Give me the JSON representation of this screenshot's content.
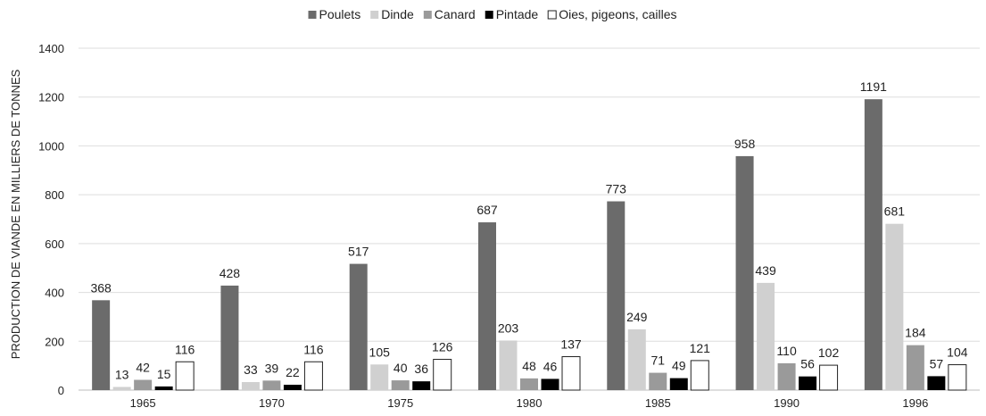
{
  "chart_data": {
    "type": "bar",
    "title": "",
    "xlabel": "",
    "ylabel": "PRODUCTION DE VIANDE EN MILLIERS DE TONNES",
    "ylim": [
      0,
      1400
    ],
    "yticks": [
      "0",
      "200",
      "400",
      "600",
      "800",
      "1000",
      "1200",
      "1400"
    ],
    "grid": true,
    "legend_position": "top",
    "categories": [
      "1965",
      "1970",
      "1975",
      "1980",
      "1985",
      "1990",
      "1996"
    ],
    "series": [
      {
        "name": "Poulets",
        "color": "#6b6b6b",
        "values": [
          368,
          428,
          517,
          687,
          773,
          958,
          1191
        ]
      },
      {
        "name": "Dinde",
        "color": "#d0d0d0",
        "values": [
          13,
          33,
          105,
          203,
          249,
          439,
          681
        ]
      },
      {
        "name": "Canard",
        "color": "#9a9a9a",
        "values": [
          42,
          39,
          40,
          48,
          71,
          110,
          184
        ]
      },
      {
        "name": "Pintade",
        "color": "#000000",
        "values": [
          15,
          22,
          36,
          46,
          49,
          56,
          57
        ]
      },
      {
        "name": "Oies, pigeons, cailles",
        "color": "#ffffff",
        "values": [
          116,
          116,
          126,
          137,
          121,
          102,
          104
        ]
      }
    ]
  }
}
